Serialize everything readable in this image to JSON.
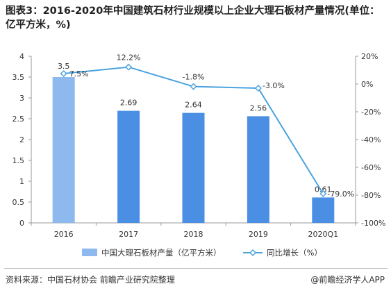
{
  "title": "图表3：2016-2020年中国建筑石材行业规模以上企业大理石板材产量情况(单位：亿平方米，%)",
  "source": "资料来源：中国石材协会 前瞻产业研究院整理",
  "brand": "@前瞻经济学人APP",
  "colors": {
    "bar_light": "#8db9ee",
    "bar_dark": "#4a8fe3",
    "line": "#4ba3e0",
    "axis_text": "#333333"
  },
  "chart_data": {
    "type": "bar",
    "categories": [
      "2016",
      "2017",
      "2018",
      "2019",
      "2020Q1"
    ],
    "series": [
      {
        "name": "中国大理石板材产量（亿平方米）",
        "type": "bar",
        "axis": "left",
        "values": [
          3.5,
          2.69,
          2.64,
          2.56,
          0.61
        ],
        "labels": [
          "3.5",
          "2.69",
          "2.64",
          "2.56",
          "0.61"
        ]
      },
      {
        "name": "同比增长（%）",
        "type": "line",
        "axis": "right",
        "values": [
          7.5,
          12.2,
          -1.8,
          -3.0,
          -79.0
        ],
        "labels": [
          "7.5%",
          "12.2%",
          "-1.8%",
          "-3.0%",
          "-79.0%"
        ]
      }
    ],
    "y_left": {
      "min": 0,
      "max": 4,
      "ticks": [
        "0",
        "0.5",
        "1",
        "1.5",
        "2",
        "2.5",
        "3",
        "3.5",
        "4"
      ]
    },
    "y_right": {
      "min": -100,
      "max": 20,
      "ticks": [
        "-100%",
        "-80%",
        "-60%",
        "-40%",
        "-20%",
        "0%",
        "20%"
      ]
    },
    "grid": false,
    "legend_position": "bottom"
  }
}
